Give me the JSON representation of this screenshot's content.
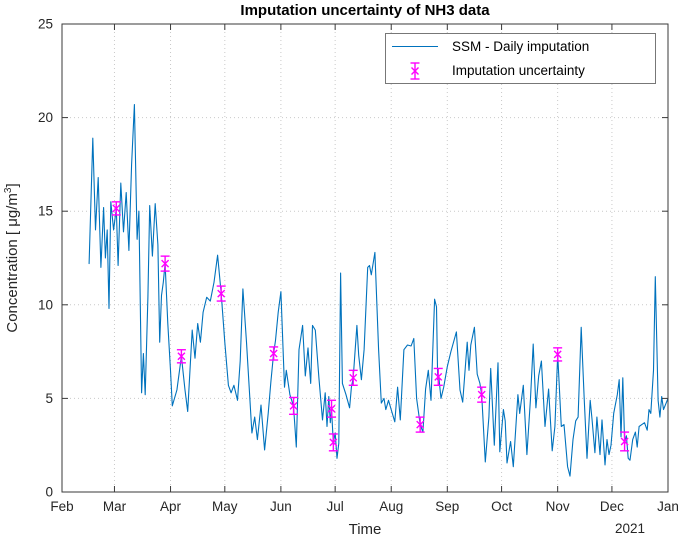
{
  "chart_data": {
    "type": "line",
    "title": "Imputation uncertainty of NH3 data",
    "xlabel": "Time",
    "ylabel_main": "Concentration [ μg/m",
    "ylabel_sup": "3",
    "ylabel_end": "]",
    "ylabel": "Concentration [ μg/m³]",
    "year_label": "2021",
    "ylim": [
      0,
      25
    ],
    "y_ticks": [
      0,
      5,
      10,
      15,
      20,
      25
    ],
    "x_total_days": 335,
    "x_ticks": [
      {
        "label": "Feb",
        "day": 0
      },
      {
        "label": "Mar",
        "day": 29
      },
      {
        "label": "Apr",
        "day": 60
      },
      {
        "label": "May",
        "day": 90
      },
      {
        "label": "Jun",
        "day": 121
      },
      {
        "label": "Jul",
        "day": 151
      },
      {
        "label": "Aug",
        "day": 182
      },
      {
        "label": "Sep",
        "day": 213
      },
      {
        "label": "Oct",
        "day": 243
      },
      {
        "label": "Nov",
        "day": 274
      },
      {
        "label": "Dec",
        "day": 304
      },
      {
        "label": "Jan",
        "day": 335
      }
    ],
    "grid": true,
    "colors": {
      "line": "#0072BD",
      "uncertainty": "#FF00FF",
      "grid": "#c9c9c9",
      "axis": "#3a3a3a",
      "text": "#262626"
    },
    "legend": {
      "position": "top-right",
      "entries": [
        {
          "label": "SSM - Daily imputation",
          "type": "line",
          "color": "#0072BD"
        },
        {
          "label": "Imputation uncertainty",
          "type": "errorbar",
          "color": "#FF00FF"
        }
      ]
    },
    "series": [
      {
        "name": "SSM - Daily imputation",
        "type": "line",
        "color": "#0072BD",
        "points": [
          [
            15,
            12.2
          ],
          [
            17,
            18.9
          ],
          [
            18.5,
            14.0
          ],
          [
            20,
            16.8
          ],
          [
            21.5,
            12.0
          ],
          [
            23,
            15.2
          ],
          [
            24,
            12.5
          ],
          [
            25,
            14.0
          ],
          [
            26,
            9.8
          ],
          [
            27,
            15.5
          ],
          [
            28.5,
            14.0
          ],
          [
            30,
            15.15
          ],
          [
            31,
            12.1
          ],
          [
            32.5,
            16.5
          ],
          [
            34,
            13.9
          ],
          [
            35.5,
            16.0
          ],
          [
            37,
            12.9
          ],
          [
            38.5,
            17.5
          ],
          [
            40,
            20.7
          ],
          [
            41.5,
            13.5
          ],
          [
            42.5,
            15.0
          ],
          [
            44,
            5.3
          ],
          [
            45,
            7.4
          ],
          [
            46,
            5.2
          ],
          [
            47.5,
            10.4
          ],
          [
            48.5,
            15.3
          ],
          [
            50,
            12.6
          ],
          [
            51.5,
            15.4
          ],
          [
            53,
            13.2
          ],
          [
            54,
            8.0
          ],
          [
            55,
            10.5
          ],
          [
            56,
            11.2
          ],
          [
            57,
            12.2
          ],
          [
            58.5,
            9.0
          ],
          [
            60,
            6.5
          ],
          [
            61,
            4.6
          ],
          [
            63.5,
            5.45
          ],
          [
            66,
            7.25
          ],
          [
            68,
            5.45
          ],
          [
            69.5,
            4.3
          ],
          [
            72,
            8.65
          ],
          [
            73.5,
            7.15
          ],
          [
            75,
            9.0
          ],
          [
            76.5,
            8.0
          ],
          [
            78,
            9.6
          ],
          [
            80,
            10.4
          ],
          [
            82,
            10.2
          ],
          [
            84,
            11.2
          ],
          [
            86,
            12.65
          ],
          [
            88,
            10.6
          ],
          [
            90,
            8.0
          ],
          [
            92,
            5.7
          ],
          [
            93.5,
            5.3
          ],
          [
            95,
            5.7
          ],
          [
            97,
            4.9
          ],
          [
            98.5,
            7.0
          ],
          [
            100,
            10.85
          ],
          [
            102,
            8.0
          ],
          [
            105,
            3.15
          ],
          [
            106.5,
            4.0
          ],
          [
            108,
            2.8
          ],
          [
            110,
            4.65
          ],
          [
            112,
            2.25
          ],
          [
            114,
            4.2
          ],
          [
            115.5,
            5.9
          ],
          [
            117,
            7.4
          ],
          [
            118,
            8.1
          ],
          [
            119.5,
            9.6
          ],
          [
            121,
            10.7
          ],
          [
            123,
            5.6
          ],
          [
            124,
            6.5
          ],
          [
            126,
            5.2
          ],
          [
            128,
            4.6
          ],
          [
            129.5,
            2.4
          ],
          [
            131,
            7.6
          ],
          [
            133,
            8.9
          ],
          [
            134.5,
            6.2
          ],
          [
            136,
            7.7
          ],
          [
            137.5,
            5.8
          ],
          [
            138.5,
            8.9
          ],
          [
            140,
            8.65
          ],
          [
            142,
            6.1
          ],
          [
            144,
            3.85
          ],
          [
            145.5,
            5.3
          ],
          [
            146.5,
            3.5
          ],
          [
            147.5,
            5.1
          ],
          [
            148.3,
            3.7
          ],
          [
            149,
            4.45
          ],
          [
            150,
            2.65
          ],
          [
            151,
            3.15
          ],
          [
            152,
            1.8
          ],
          [
            153,
            2.6
          ],
          [
            154,
            11.7
          ],
          [
            155,
            5.8
          ],
          [
            157,
            5.2
          ],
          [
            159,
            4.5
          ],
          [
            160,
            5.6
          ],
          [
            161,
            6.1
          ],
          [
            163,
            8.9
          ],
          [
            164,
            7.3
          ],
          [
            165.5,
            6.0
          ],
          [
            167,
            7.6
          ],
          [
            169,
            12.0
          ],
          [
            170,
            12.1
          ],
          [
            171,
            11.6
          ],
          [
            173,
            12.8
          ],
          [
            175,
            7.6
          ],
          [
            176.5,
            4.75
          ],
          [
            178,
            5.0
          ],
          [
            179,
            4.4
          ],
          [
            180.5,
            4.9
          ],
          [
            182,
            4.4
          ],
          [
            184,
            3.75
          ],
          [
            185.5,
            5.6
          ],
          [
            187,
            3.85
          ],
          [
            189,
            7.6
          ],
          [
            191,
            7.85
          ],
          [
            193,
            7.8
          ],
          [
            194.5,
            8.2
          ],
          [
            196,
            5.0
          ],
          [
            198,
            3.6
          ],
          [
            199.5,
            3.2
          ],
          [
            201,
            5.5
          ],
          [
            202.5,
            6.5
          ],
          [
            204,
            4.9
          ],
          [
            206,
            10.3
          ],
          [
            207,
            9.9
          ],
          [
            207.7,
            6.0
          ],
          [
            208.3,
            6.15
          ],
          [
            209.5,
            5.0
          ],
          [
            211,
            5.6
          ],
          [
            213,
            6.7
          ],
          [
            215,
            7.5
          ],
          [
            218,
            8.55
          ],
          [
            220,
            5.45
          ],
          [
            221.5,
            4.8
          ],
          [
            224,
            8.0
          ],
          [
            225,
            6.5
          ],
          [
            226,
            7.85
          ],
          [
            228,
            8.8
          ],
          [
            229.5,
            6.3
          ],
          [
            231,
            5.8
          ],
          [
            232,
            5.2
          ],
          [
            234,
            1.6
          ],
          [
            236,
            4.0
          ],
          [
            237,
            6.6
          ],
          [
            239,
            2.5
          ],
          [
            241,
            6.9
          ],
          [
            242,
            2.15
          ],
          [
            244,
            4.4
          ],
          [
            245,
            3.8
          ],
          [
            246,
            1.55
          ],
          [
            248,
            2.7
          ],
          [
            249.5,
            1.35
          ],
          [
            252,
            5.2
          ],
          [
            253,
            4.2
          ],
          [
            255,
            5.7
          ],
          [
            257,
            2.0
          ],
          [
            259,
            5.0
          ],
          [
            260.5,
            7.9
          ],
          [
            262,
            4.5
          ],
          [
            263.5,
            6.2
          ],
          [
            265,
            7.0
          ],
          [
            267,
            3.5
          ],
          [
            269,
            5.5
          ],
          [
            271,
            2.2
          ],
          [
            272.5,
            3.5
          ],
          [
            274,
            7.35
          ],
          [
            276,
            3.5
          ],
          [
            277.5,
            3.6
          ],
          [
            279.5,
            1.35
          ],
          [
            280.8,
            0.85
          ],
          [
            282.5,
            2.8
          ],
          [
            284,
            3.8
          ],
          [
            285.3,
            4.0
          ],
          [
            287,
            8.8
          ],
          [
            288.6,
            5.1
          ],
          [
            290.2,
            1.8
          ],
          [
            292,
            4.9
          ],
          [
            293,
            3.9
          ],
          [
            294.6,
            2.1
          ],
          [
            295.7,
            4.0
          ],
          [
            297.4,
            2.0
          ],
          [
            298.5,
            3.85
          ],
          [
            300.2,
            1.45
          ],
          [
            301.3,
            2.8
          ],
          [
            302.4,
            2.0
          ],
          [
            303.5,
            2.5
          ],
          [
            305,
            4.2
          ],
          [
            307,
            5.2
          ],
          [
            308,
            6.0
          ],
          [
            309,
            2.95
          ],
          [
            310,
            6.1
          ],
          [
            311,
            2.7
          ],
          [
            312,
            3.0
          ],
          [
            313,
            1.8
          ],
          [
            314,
            1.7
          ],
          [
            315.5,
            2.8
          ],
          [
            317,
            3.2
          ],
          [
            318,
            2.4
          ],
          [
            319,
            3.5
          ],
          [
            320.5,
            3.6
          ],
          [
            322,
            3.7
          ],
          [
            323.5,
            3.3
          ],
          [
            324.5,
            4.4
          ],
          [
            325.5,
            4.2
          ],
          [
            327,
            6.5
          ],
          [
            328,
            11.5
          ],
          [
            329.5,
            4.9
          ],
          [
            330.5,
            4.0
          ],
          [
            331.5,
            5.1
          ],
          [
            332.5,
            4.4
          ],
          [
            335,
            5.0
          ]
        ]
      }
    ],
    "uncertainty": {
      "name": "Imputation uncertainty",
      "color": "#FF00FF",
      "points": [
        {
          "day": 30,
          "value": 15.15,
          "err": 0.35
        },
        {
          "day": 57,
          "value": 12.2,
          "err": 0.4
        },
        {
          "day": 66,
          "value": 7.25,
          "err": 0.35
        },
        {
          "day": 88,
          "value": 10.6,
          "err": 0.4
        },
        {
          "day": 117,
          "value": 7.4,
          "err": 0.35
        },
        {
          "day": 128,
          "value": 4.6,
          "err": 0.45
        },
        {
          "day": 149,
          "value": 4.45,
          "err": 0.45
        },
        {
          "day": 150,
          "value": 2.65,
          "err": 0.45
        },
        {
          "day": 161,
          "value": 6.1,
          "err": 0.4
        },
        {
          "day": 198,
          "value": 3.6,
          "err": 0.4
        },
        {
          "day": 208,
          "value": 6.15,
          "err": 0.45
        },
        {
          "day": 232,
          "value": 5.2,
          "err": 0.4
        },
        {
          "day": 274,
          "value": 7.35,
          "err": 0.35
        },
        {
          "day": 311,
          "value": 2.7,
          "err": 0.5
        }
      ]
    }
  }
}
